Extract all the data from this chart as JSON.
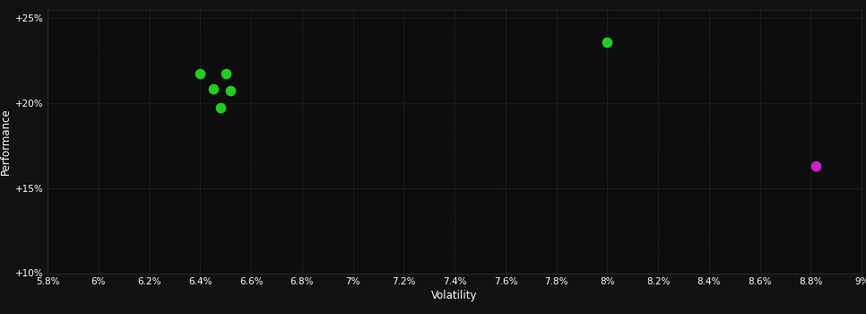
{
  "background_color": "#111111",
  "plot_bg_color": "#0d0d0d",
  "text_color": "#ffffff",
  "xlabel": "Volatility",
  "ylabel": "Performance",
  "xlim": [
    0.058,
    0.09
  ],
  "ylim": [
    0.1,
    0.255
  ],
  "xticks": [
    0.058,
    0.06,
    0.062,
    0.064,
    0.066,
    0.068,
    0.07,
    0.072,
    0.074,
    0.076,
    0.078,
    0.08,
    0.082,
    0.084,
    0.086,
    0.088,
    0.09
  ],
  "yticks": [
    0.1,
    0.15,
    0.2,
    0.25
  ],
  "green_points": [
    [
      0.064,
      0.2175
    ],
    [
      0.065,
      0.2175
    ],
    [
      0.0645,
      0.2085
    ],
    [
      0.0652,
      0.2075
    ],
    [
      0.0648,
      0.1975
    ],
    [
      0.08,
      0.2355
    ]
  ],
  "magenta_points": [
    [
      0.0882,
      0.163
    ]
  ],
  "green_color": "#22cc22",
  "magenta_color": "#cc22cc",
  "marker_size": 55,
  "figsize": [
    9.66,
    3.5
  ],
  "dpi": 100
}
